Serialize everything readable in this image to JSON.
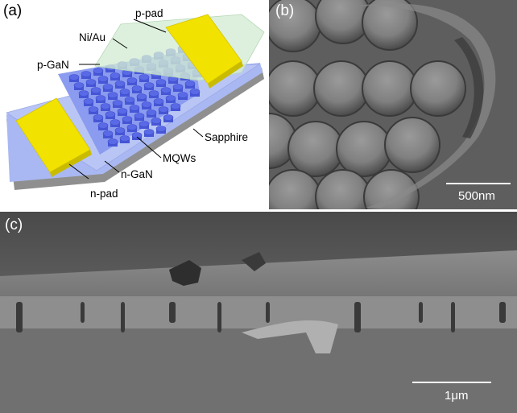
{
  "panels": {
    "a": {
      "label": "(a)"
    },
    "b": {
      "label": "(b)",
      "scale_bar": "500nm"
    },
    "c": {
      "label": "(c)",
      "scale_bar": "1μm"
    }
  },
  "device_labels": {
    "p_pad": "p-pad",
    "ni_au": "Ni/Au",
    "p_gan": "p-GaN",
    "sapphire": "Sapphire",
    "mqws": "MQWs",
    "n_gan": "n-GaN",
    "n_pad": "n-pad"
  },
  "colors": {
    "pad_yellow": "#f2e200",
    "gan_blue": "#a9b8f2",
    "sapphire_gray": "#8f8f8f",
    "nano_rod": "#5a6ae6",
    "ni_au_green": "#cfe8cf"
  }
}
